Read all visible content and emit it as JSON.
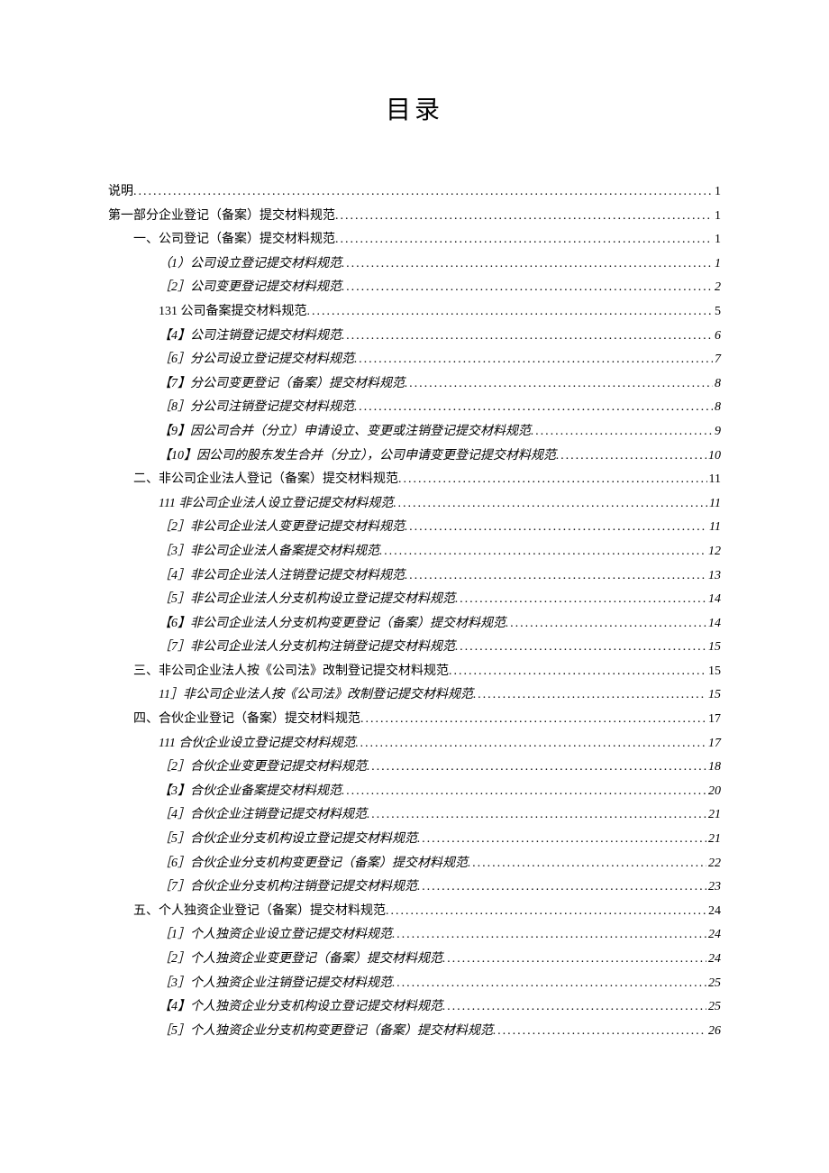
{
  "title": "目录",
  "entries": [
    {
      "label": "说明",
      "page": "1",
      "level": 0,
      "italic": false
    },
    {
      "label": "第一部分企业登记（备案）提交材料规范",
      "page": "1",
      "level": 0,
      "italic": false
    },
    {
      "label": "一、公司登记（备案）提交材料规范 ",
      "page": "1",
      "level": 1,
      "italic": false
    },
    {
      "label": "（1）公司设立登记提交材料规范",
      "page": "1",
      "level": 2,
      "italic": true
    },
    {
      "label": "［2］公司变更登记提交材料规范",
      "page": "2",
      "level": 2,
      "italic": true
    },
    {
      "label": "131 公司备案提交材料规范",
      "page": "5",
      "level": 2,
      "italic": false
    },
    {
      "label": "【4】公司注销登记提交材料规范",
      "page": "6",
      "level": 2,
      "italic": true
    },
    {
      "label": "［6］分公司设立登记提交材料规范",
      "page": "7",
      "level": 2,
      "italic": true
    },
    {
      "label": "【7】分公司变更登记（备案）提交材料规范",
      "page": "8",
      "level": 2,
      "italic": true
    },
    {
      "label": "［8］分公司注销登记提交材料规范",
      "page": "8",
      "level": 2,
      "italic": true
    },
    {
      "label": "【9】因公司合并（分立）申请设立、变更或注销登记提交材料规范",
      "page": "9",
      "level": 2,
      "italic": true
    },
    {
      "label": "【10】因公司的股东发生合并（分立），公司申请变更登记提交材料规范",
      "page": "10",
      "level": 2,
      "italic": true
    },
    {
      "label": "二、非公司企业法人登记（备案）提交材料规范 ",
      "page": "11",
      "level": 1,
      "italic": false
    },
    {
      "label": "111 非公司企业法人设立登记提交材料规范",
      "page": "11",
      "level": 2,
      "italic": true
    },
    {
      "label": "［2］非公司企业法人变更登记提交材料规范",
      "page": "11",
      "level": 2,
      "italic": true
    },
    {
      "label": "［3］非公司企业法人备案提交材料规范",
      "page": "12",
      "level": 2,
      "italic": true
    },
    {
      "label": "［4］非公司企业法人注销登记提交材料规范",
      "page": "13",
      "level": 2,
      "italic": true
    },
    {
      "label": "［5］非公司企业法人分支机构设立登记提交材料规范",
      "page": "14",
      "level": 2,
      "italic": true
    },
    {
      "label": "【6】非公司企业法人分支机构变更登记（备案）提交材料规范",
      "page": "14",
      "level": 2,
      "italic": true
    },
    {
      "label": "［7］非公司企业法人分支机构注销登记提交材料规范",
      "page": "15",
      "level": 2,
      "italic": true
    },
    {
      "label": "三、非公司企业法人按《公司法》改制登记提交材料规范 ",
      "page": "15",
      "level": 1,
      "italic": false
    },
    {
      "label": "11］非公司企业法人按《公司法》改制登记提交材料规范",
      "page": "15",
      "level": 2,
      "italic": true
    },
    {
      "label": "四、合伙企业登记（备案）提交材料规范 ",
      "page": "17",
      "level": 1,
      "italic": false
    },
    {
      "label": "111 合伙企业设立登记提交材料规范",
      "page": "17",
      "level": 2,
      "italic": true
    },
    {
      "label": "［2］合伙企业变更登记提交材料规范",
      "page": "18",
      "level": 2,
      "italic": true
    },
    {
      "label": "【3】合伙企业备案提交材料规范",
      "page": "20",
      "level": 2,
      "italic": true
    },
    {
      "label": "［4］合伙企业注销登记提交材料规范",
      "page": "21",
      "level": 2,
      "italic": true
    },
    {
      "label": "［5］合伙企业分支机构设立登记提交材料规范",
      "page": "21",
      "level": 2,
      "italic": true
    },
    {
      "label": "［6］合伙企业分支机构变更登记（备案）提交材料规范",
      "page": "22",
      "level": 2,
      "italic": true
    },
    {
      "label": "［7］合伙企业分支机构注销登记提交材料规范",
      "page": "23",
      "level": 2,
      "italic": true
    },
    {
      "label": "五、个人独资企业登记（备案）提交材料规范 ",
      "page": "24",
      "level": 1,
      "italic": false
    },
    {
      "label": "［1］个人独资企业设立登记提交材料规范",
      "page": "24",
      "level": 2,
      "italic": true
    },
    {
      "label": "［2］个人独资企业变更登记（备案）提交材料规范",
      "page": "24",
      "level": 2,
      "italic": true
    },
    {
      "label": "［3］个人独资企业注销登记提交材料规范",
      "page": "25",
      "level": 2,
      "italic": true
    },
    {
      "label": "【4】个人独资企业分支机构设立登记提交材料规范",
      "page": "25",
      "level": 2,
      "italic": true
    },
    {
      "label": "［5］个人独资企业分支机构变更登记（备案）提交材料规范",
      "page": "26",
      "level": 2,
      "italic": true
    }
  ]
}
